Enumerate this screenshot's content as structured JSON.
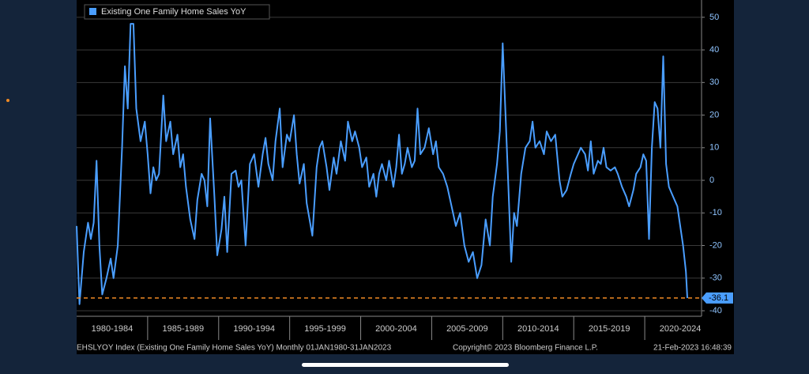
{
  "chart_data": {
    "type": "line",
    "x": [
      1980.0,
      1980.2,
      1980.5,
      1980.8,
      1981.0,
      1981.2,
      1981.4,
      1981.6,
      1981.8,
      1982.1,
      1982.4,
      1982.6,
      1982.9,
      1983.2,
      1983.4,
      1983.6,
      1983.8,
      1984.0,
      1984.2,
      1984.5,
      1984.8,
      1985.0,
      1985.2,
      1985.4,
      1985.6,
      1985.8,
      1986.1,
      1986.3,
      1986.6,
      1986.8,
      1987.1,
      1987.3,
      1987.5,
      1987.7,
      1988.0,
      1988.3,
      1988.5,
      1988.8,
      1989.0,
      1989.2,
      1989.4,
      1989.7,
      1989.9,
      1990.2,
      1990.4,
      1990.6,
      1990.9,
      1991.2,
      1991.4,
      1991.6,
      1991.9,
      1992.2,
      1992.5,
      1992.8,
      1993.1,
      1993.3,
      1993.5,
      1993.8,
      1994.0,
      1994.3,
      1994.5,
      1994.8,
      1995.0,
      1995.3,
      1995.5,
      1995.7,
      1996.0,
      1996.2,
      1996.4,
      1996.6,
      1996.9,
      1997.1,
      1997.3,
      1997.6,
      1997.8,
      1998.1,
      1998.3,
      1998.6,
      1998.9,
      1999.1,
      1999.4,
      1999.6,
      1999.9,
      2000.1,
      2000.4,
      2000.6,
      2000.9,
      2001.1,
      2001.3,
      2001.5,
      2001.8,
      2002.0,
      2002.3,
      2002.5,
      2002.7,
      2002.9,
      2003.1,
      2003.3,
      2003.6,
      2003.8,
      2004.0,
      2004.2,
      2004.5,
      2004.8,
      2005.1,
      2005.3,
      2005.5,
      2005.8,
      2006.1,
      2006.4,
      2006.7,
      2007.0,
      2007.3,
      2007.6,
      2007.9,
      2008.2,
      2008.5,
      2008.8,
      2009.1,
      2009.3,
      2009.6,
      2009.8,
      2010.0,
      2010.2,
      2010.4,
      2010.6,
      2010.8,
      2011.0,
      2011.3,
      2011.6,
      2011.9,
      2012.1,
      2012.3,
      2012.6,
      2012.9,
      2013.1,
      2013.4,
      2013.7,
      2014.0,
      2014.2,
      2014.5,
      2014.8,
      2015.0,
      2015.3,
      2015.5,
      2015.8,
      2016.0,
      2016.2,
      2016.4,
      2016.7,
      2016.9,
      2017.1,
      2017.3,
      2017.6,
      2017.9,
      2018.1,
      2018.4,
      2018.7,
      2018.9,
      2019.2,
      2019.4,
      2019.7,
      2019.9,
      2020.1,
      2020.3,
      2020.5,
      2020.7,
      2020.9,
      2021.1,
      2021.3,
      2021.5,
      2021.7,
      2021.9,
      2022.1,
      2022.3,
      2022.5,
      2022.7,
      2022.9,
      2023.0
    ],
    "series": [
      {
        "name": "Existing One Family Home Sales YoY",
        "color": "#4a9eff",
        "values": [
          -14,
          -38,
          -22,
          -13,
          -18,
          -13,
          6,
          -20,
          -35,
          -30,
          -24,
          -30,
          -20,
          10,
          35,
          22,
          48,
          48,
          22,
          12,
          18,
          8,
          -4,
          4,
          0,
          2,
          26,
          12,
          18,
          8,
          14,
          4,
          8,
          -2,
          -12,
          -18,
          -6,
          2,
          0,
          -8,
          19,
          -5,
          -23,
          -15,
          -5,
          -22,
          2,
          3,
          -2,
          0,
          -20,
          5,
          8,
          -2,
          8,
          13,
          5,
          0,
          12,
          22,
          4,
          14,
          12,
          20,
          8,
          -1,
          5,
          -7,
          -12,
          -17,
          4,
          10,
          12,
          4,
          -3,
          7,
          2,
          12,
          6,
          18,
          12,
          15,
          10,
          4,
          7,
          -2,
          2,
          -5,
          2,
          5,
          0,
          6,
          -2,
          4,
          14,
          2,
          5,
          10,
          4,
          6,
          22,
          8,
          10,
          16,
          8,
          12,
          4,
          2,
          -2,
          -8,
          -14,
          -10,
          -20,
          -25,
          -22,
          -30,
          -26,
          -12,
          -20,
          -5,
          5,
          15,
          42,
          20,
          -2,
          -25,
          -10,
          -14,
          2,
          10,
          12,
          18,
          10,
          12,
          8,
          15,
          12,
          14,
          0,
          -5,
          -3,
          2,
          5,
          8,
          10,
          8,
          3,
          12,
          2,
          6,
          5,
          10,
          4,
          3,
          4,
          2,
          -2,
          -5,
          -8,
          -3,
          2,
          4,
          8,
          6,
          -18,
          10,
          24,
          22,
          10,
          38,
          5,
          -2,
          -4,
          -6,
          -8,
          -14,
          -20,
          -28,
          -36.1
        ]
      }
    ],
    "last_value": -36.1,
    "xlim": [
      1980,
      2024
    ],
    "xticks": [
      {
        "value": 1982.5,
        "label": "1980-1984"
      },
      {
        "value": 1987.5,
        "label": "1985-1989"
      },
      {
        "value": 1992.5,
        "label": "1990-1994"
      },
      {
        "value": 1997.5,
        "label": "1995-1999"
      },
      {
        "value": 2002.5,
        "label": "2000-2004"
      },
      {
        "value": 2007.5,
        "label": "2005-2009"
      },
      {
        "value": 2012.5,
        "label": "2010-2014"
      },
      {
        "value": 2017.5,
        "label": "2015-2019"
      },
      {
        "value": 2022.5,
        "label": "2020-2024"
      }
    ],
    "ylim": [
      -41.7,
      55.3
    ],
    "yticks": [
      -40,
      -30,
      -20,
      -10,
      0,
      10,
      20,
      30,
      40,
      50
    ],
    "grid": true,
    "notes": [
      "EHSLYOY Index (Existing One Family Home Sales YoY)  Monthly 01JAN1980-31JAN2023",
      "Copyright© 2023 Bloomberg Finance L.P.",
      "21-Feb-2023 16:48:39"
    ]
  }
}
